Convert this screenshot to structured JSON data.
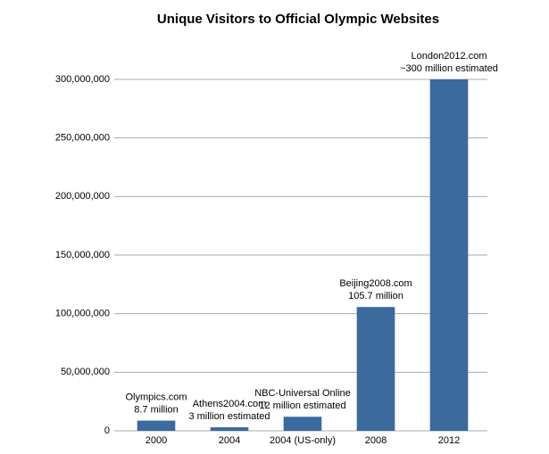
{
  "chart_data": {
    "type": "bar",
    "title": "Unique Visitors to Official Olympic Websites",
    "categories": [
      "2000",
      "2004",
      "2004 (US-only)",
      "2008",
      "2012"
    ],
    "values": [
      8700000,
      3000000,
      12000000,
      105700000,
      300000000
    ],
    "annotations": [
      "Olympics.com",
      "Athens2004.com",
      "NBC-Universal Online",
      "Beijing2008.com",
      "London2012.com"
    ],
    "value_labels": [
      "8.7 million",
      "3 million estimated",
      "12 million estimated",
      "105.7 million",
      "~300 million estimated"
    ],
    "color": "#3b6a9c",
    "ylim": [
      0,
      300000000
    ],
    "yticks": [
      0,
      {
        "value": 50000000,
        "label": "50,000,000"
      },
      {
        "value": 100000000,
        "label": "100,000,000"
      },
      {
        "value": 150000000,
        "label": "150,000,000"
      },
      {
        "value": 200000000,
        "label": "200,000,000"
      },
      {
        "value": 250000000,
        "label": "250,000,000"
      },
      {
        "value": 300000000,
        "label": "300,000,000"
      }
    ],
    "grid": true
  }
}
